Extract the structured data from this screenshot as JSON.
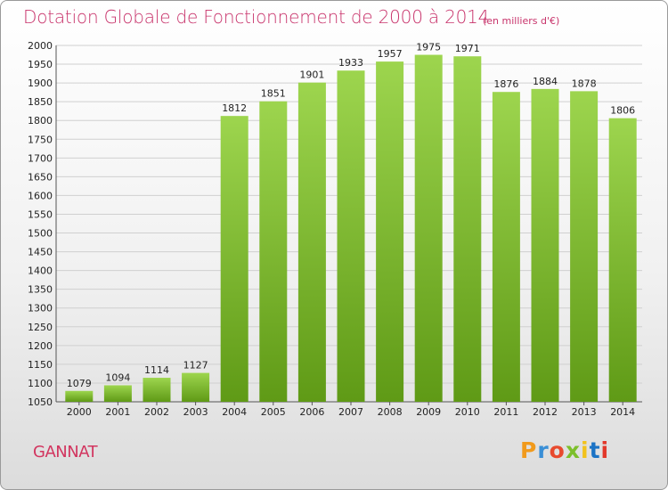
{
  "header": {
    "title": "Dotation Globale de Fonctionnement de 2000 à 2014",
    "unit": "(en milliers d'€)"
  },
  "footer": {
    "commune": "GANNAT",
    "logo_text": "Proxiti"
  },
  "colors": {
    "title": "#c8336b",
    "bar_top": "#9dd54e",
    "bar_bottom": "#5f9a16",
    "grid": "#d0d0d0",
    "logo_letters": [
      "#f19a1c",
      "#3a8fd6",
      "#e84a2e",
      "#7cbf2b",
      "#f2c21c",
      "#1b73c5",
      "#e2382a"
    ]
  },
  "chart_data": {
    "type": "bar",
    "title": "Dotation Globale de Fonctionnement de 2000 à 2014",
    "subtitle": "(en milliers d'€)",
    "xlabel": "",
    "ylabel": "",
    "categories": [
      "2000",
      "2001",
      "2002",
      "2003",
      "2004",
      "2005",
      "2006",
      "2007",
      "2008",
      "2009",
      "2010",
      "2011",
      "2012",
      "2013",
      "2014"
    ],
    "values": [
      1079,
      1094,
      1114,
      1127,
      1812,
      1851,
      1901,
      1933,
      1957,
      1975,
      1971,
      1876,
      1884,
      1878,
      1806
    ],
    "data_labels": [
      "1079",
      "1094",
      "1114",
      "1127",
      "1812",
      "1851",
      "1901",
      "1933",
      "1957",
      "1975",
      "1971",
      "1876",
      "1884",
      "1878",
      "1806"
    ],
    "ylim": [
      1050,
      2000
    ],
    "yticks": [
      1050,
      1100,
      1150,
      1200,
      1250,
      1300,
      1350,
      1400,
      1450,
      1500,
      1550,
      1600,
      1650,
      1700,
      1750,
      1800,
      1850,
      1900,
      1950,
      2000
    ],
    "grid": true,
    "legend": "none"
  }
}
